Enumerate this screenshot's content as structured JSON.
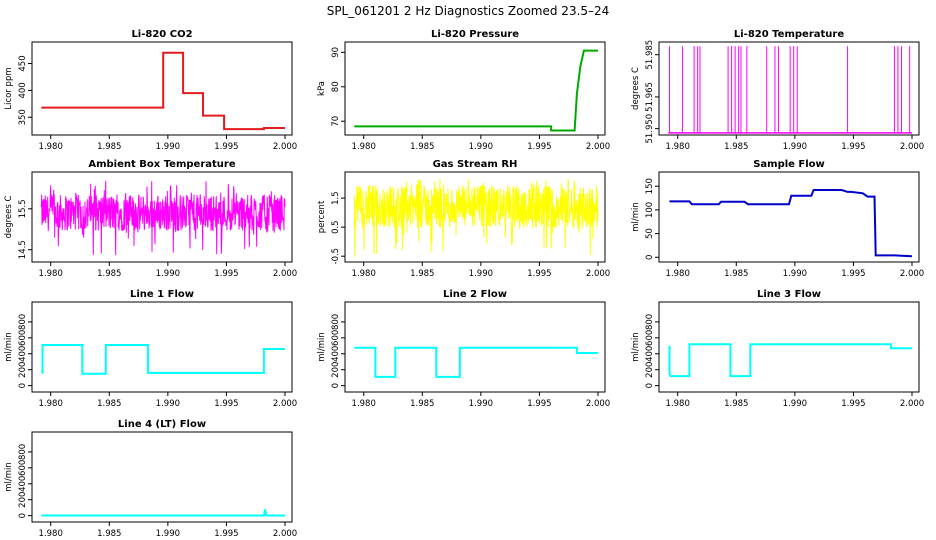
{
  "figure": {
    "title": "SPL_061201  2 Hz Diagnostics Zoomed 23.5–24"
  },
  "chart_data": [
    {
      "id": "co2",
      "type": "line",
      "title": "Li-820 CO2",
      "ylabel": "Licor ppm",
      "color": "#e41a1c",
      "xlim": [
        1.979,
        2.0
      ],
      "xticks": [
        1.98,
        1.985,
        1.99,
        1.995,
        2.0
      ],
      "xtick_labels": [
        "1.980",
        "1.985",
        "1.990",
        "1.995",
        "2.000"
      ],
      "ylim": [
        317,
        490
      ],
      "yticks": [
        350,
        400,
        450
      ],
      "ytick_labels": [
        "350",
        "400",
        "450"
      ],
      "series": [
        {
          "x": [
            1.9792,
            1.9896,
            1.9896,
            1.9913,
            1.9913,
            1.993,
            1.993,
            1.9948,
            1.9948,
            1.9982,
            1.9982,
            2.0
          ],
          "y": [
            368,
            368,
            470,
            470,
            395,
            395,
            353,
            353,
            328,
            328,
            330,
            330
          ]
        }
      ]
    },
    {
      "id": "pressure",
      "type": "line",
      "title": "Li-820 Pressure",
      "ylabel": "kPa",
      "color": "#00aa00",
      "xlim": [
        1.979,
        2.0
      ],
      "xticks": [
        1.98,
        1.985,
        1.99,
        1.995,
        2.0
      ],
      "xtick_labels": [
        "1.980",
        "1.985",
        "1.990",
        "1.995",
        "2.000"
      ],
      "ylim": [
        66,
        93
      ],
      "yticks": [
        70,
        80,
        90
      ],
      "ytick_labels": [
        "70",
        "80",
        "90"
      ],
      "series": [
        {
          "x": [
            1.9792,
            1.996,
            1.996,
            1.998,
            1.9982,
            1.9985,
            1.9988,
            1.9992,
            2.0
          ],
          "y": [
            68.5,
            68.5,
            67.3,
            67.3,
            78,
            86,
            90.5,
            90.5,
            90.5
          ]
        }
      ]
    },
    {
      "id": "temperature",
      "type": "spikes",
      "title": "Li-820 Temperature",
      "ylabel": "degrees C",
      "color": "#ff00ff",
      "xlim": [
        1.979,
        2.0
      ],
      "xticks": [
        1.98,
        1.985,
        1.99,
        1.995,
        2.0
      ],
      "xtick_labels": [
        "1.980",
        "1.985",
        "1.990",
        "1.995",
        "2.000"
      ],
      "ylim": [
        51.947,
        51.991
      ],
      "yticks": [
        51.95,
        51.965,
        51.985
      ],
      "ytick_labels": [
        "51.950",
        "51.965",
        "51.985"
      ],
      "baseline": 51.948,
      "spike_top": 51.989,
      "series": [
        {
          "x": [
            1.9793,
            1.9804,
            1.9814,
            1.9817,
            1.9819,
            1.9843,
            1.9846,
            1.9849,
            1.9852,
            1.9854,
            1.9859,
            1.9876,
            1.9883,
            1.9886,
            1.9896,
            1.9899,
            1.9902,
            1.9945,
            1.9985,
            1.9988,
            1.9991,
            1.9998
          ]
        }
      ]
    },
    {
      "id": "ambient",
      "type": "noise",
      "title": "Ambient Box Temperature",
      "ylabel": "degrees C",
      "color": "#ff00ff",
      "xlim": [
        1.979,
        2.0
      ],
      "xticks": [
        1.98,
        1.985,
        1.99,
        1.995,
        2.0
      ],
      "xtick_labels": [
        "1.980",
        "1.985",
        "1.990",
        "1.995",
        "2.000"
      ],
      "ylim": [
        14.2,
        16.4
      ],
      "yticks": [
        14.5,
        15.5
      ],
      "ytick_labels": [
        "14.5",
        "15.5"
      ],
      "mean": 15.4,
      "band": 0.45,
      "min": 14.35,
      "max": 16.2
    },
    {
      "id": "rh",
      "type": "noise",
      "title": "Gas Stream RH",
      "ylabel": "percent",
      "color": "#ffff00",
      "xlim": [
        1.979,
        2.0
      ],
      "xticks": [
        1.98,
        1.985,
        1.99,
        1.995,
        2.0
      ],
      "xtick_labels": [
        "1.980",
        "1.985",
        "1.990",
        "1.995",
        "2.000"
      ],
      "ylim": [
        -0.7,
        2.4
      ],
      "yticks": [
        -0.5,
        0.5,
        1.5
      ],
      "ytick_labels": [
        "-0.5",
        "0.5",
        "1.5"
      ],
      "mean": 1.2,
      "band": 0.75,
      "min": -0.55,
      "max": 2.25
    },
    {
      "id": "sample",
      "type": "line",
      "title": "Sample Flow",
      "ylabel": "ml/min",
      "color": "#0000cc",
      "xlim": [
        1.979,
        2.0
      ],
      "xticks": [
        1.98,
        1.985,
        1.99,
        1.995,
        2.0
      ],
      "xtick_labels": [
        "1.980",
        "1.985",
        "1.990",
        "1.995",
        "2.000"
      ],
      "ylim": [
        -10,
        180
      ],
      "yticks": [
        0,
        50,
        100,
        150
      ],
      "ytick_labels": [
        "0",
        "50",
        "100",
        "150"
      ],
      "series": [
        {
          "x": [
            1.9793,
            1.981,
            1.9812,
            1.9835,
            1.9837,
            1.9857,
            1.986,
            1.9895,
            1.9897,
            1.9914,
            1.9916,
            1.994,
            1.9945,
            1.9948,
            1.9958,
            1.9962,
            1.9968,
            1.9969,
            1.9985,
            2.0
          ],
          "y": [
            118,
            118,
            112,
            112,
            117,
            117,
            112,
            112,
            130,
            130,
            142,
            142,
            138,
            138,
            135,
            128,
            128,
            4,
            4,
            2
          ]
        }
      ]
    },
    {
      "id": "line1",
      "type": "line",
      "title": "Line 1 Flow",
      "ylabel": "ml/min",
      "color": "#00ffff",
      "xlim": [
        1.979,
        2.0
      ],
      "xticks": [
        1.98,
        1.985,
        1.99,
        1.995,
        2.0
      ],
      "xtick_labels": [
        "1.980",
        "1.985",
        "1.990",
        "1.995",
        "2.000"
      ],
      "ylim": [
        -80,
        1050
      ],
      "yticks": [
        0,
        200,
        400,
        600,
        800
      ],
      "ytick_labels": [
        "0",
        "200",
        "400",
        "600",
        "800"
      ],
      "series": [
        {
          "x": [
            1.9793,
            1.9793,
            1.9827,
            1.9827,
            1.9847,
            1.9847,
            1.9883,
            1.9883,
            1.9982,
            1.9982,
            2.0
          ],
          "y": [
            150,
            510,
            510,
            150,
            150,
            510,
            510,
            160,
            160,
            460,
            460
          ]
        }
      ]
    },
    {
      "id": "line2",
      "type": "line",
      "title": "Line 2 Flow",
      "ylabel": "ml/min",
      "color": "#00ffff",
      "xlim": [
        1.979,
        2.0
      ],
      "xticks": [
        1.98,
        1.985,
        1.99,
        1.995,
        2.0
      ],
      "xtick_labels": [
        "1.980",
        "1.985",
        "1.990",
        "1.995",
        "2.000"
      ],
      "ylim": [
        -80,
        1050
      ],
      "yticks": [
        0,
        200,
        400,
        600,
        800
      ],
      "ytick_labels": [
        "0",
        "200",
        "400",
        "600",
        "800"
      ],
      "series": [
        {
          "x": [
            1.9792,
            1.981,
            1.981,
            1.9827,
            1.9827,
            1.9862,
            1.9862,
            1.9882,
            1.9882,
            1.9982,
            1.9982,
            2.0
          ],
          "y": [
            475,
            475,
            110,
            110,
            475,
            475,
            110,
            110,
            475,
            475,
            410,
            410
          ]
        }
      ]
    },
    {
      "id": "line3",
      "type": "line",
      "title": "Line 3 Flow",
      "ylabel": "ml/min",
      "color": "#00ffff",
      "xlim": [
        1.979,
        2.0
      ],
      "xticks": [
        1.98,
        1.985,
        1.99,
        1.995,
        2.0
      ],
      "xtick_labels": [
        "1.980",
        "1.985",
        "1.990",
        "1.995",
        "2.000"
      ],
      "ylim": [
        -80,
        1050
      ],
      "yticks": [
        0,
        200,
        400,
        600,
        800
      ],
      "ytick_labels": [
        "0",
        "200",
        "400",
        "600",
        "800"
      ],
      "series": [
        {
          "x": [
            1.9793,
            1.9793,
            1.9794,
            1.981,
            1.981,
            1.9845,
            1.9845,
            1.9862,
            1.9862,
            1.9982,
            1.9982,
            2.0
          ],
          "y": [
            500,
            150,
            120,
            120,
            520,
            520,
            120,
            120,
            520,
            520,
            470,
            470
          ]
        }
      ]
    },
    {
      "id": "line4",
      "type": "line",
      "title": "Line 4 (LT) Flow",
      "ylabel": "ml/min",
      "color": "#00ffff",
      "xlim": [
        1.979,
        2.0
      ],
      "xticks": [
        1.98,
        1.985,
        1.99,
        1.995,
        2.0
      ],
      "xtick_labels": [
        "1.980",
        "1.985",
        "1.990",
        "1.995",
        "2.000"
      ],
      "ylim": [
        -80,
        1050
      ],
      "yticks": [
        0,
        200,
        400,
        600,
        800
      ],
      "ytick_labels": [
        "0",
        "200",
        "400",
        "600",
        "800"
      ],
      "series": [
        {
          "x": [
            1.9792,
            1.9982,
            1.9983,
            1.9984,
            1.9985,
            2.0
          ],
          "y": [
            2,
            2,
            80,
            2,
            2,
            2
          ]
        }
      ]
    }
  ]
}
